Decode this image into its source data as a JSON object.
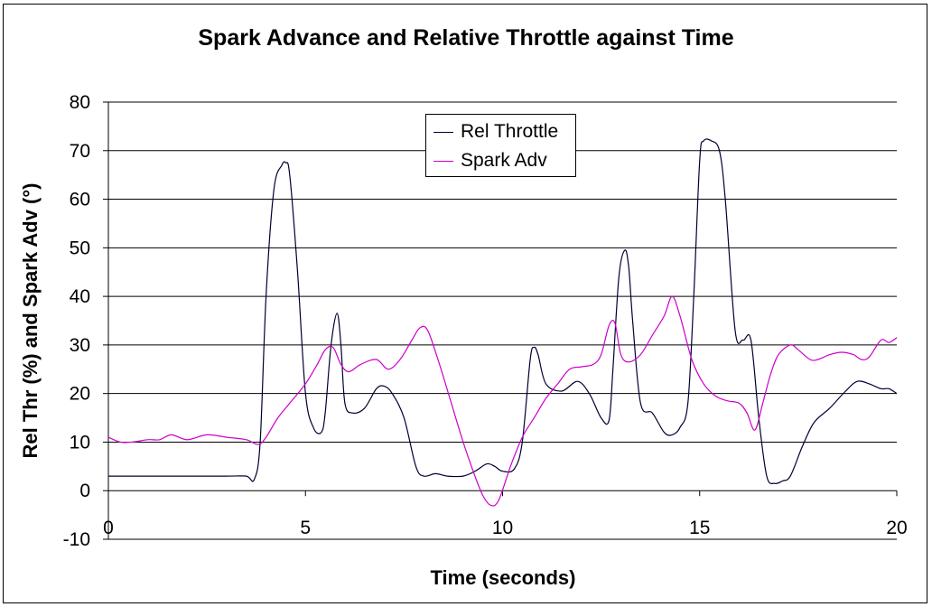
{
  "chart_data": {
    "type": "line",
    "title": "Spark Advance and Relative Throttle against Time",
    "xlabel": "Time (seconds)",
    "ylabel": "Rel Thr (%) and Spark Adv (°)",
    "xlim": [
      0,
      20
    ],
    "ylim": [
      -10,
      80
    ],
    "x_ticks": [
      "0",
      "5",
      "10",
      "15",
      "20"
    ],
    "y_ticks": [
      "-10",
      "0",
      "10",
      "20",
      "30",
      "40",
      "50",
      "60",
      "70",
      "80"
    ],
    "grid": "horizontal",
    "legend_position": "top-center",
    "series": [
      {
        "name": "Rel Throttle",
        "color": "#000033",
        "x": [
          0,
          1,
          2,
          3,
          3.5,
          3.7,
          3.85,
          4.0,
          4.2,
          4.4,
          4.5,
          4.6,
          4.8,
          5.0,
          5.2,
          5.4,
          5.5,
          5.65,
          5.8,
          5.9,
          6.0,
          6.2,
          6.5,
          6.8,
          7.0,
          7.2,
          7.5,
          7.8,
          8.0,
          8.3,
          8.6,
          9.0,
          9.3,
          9.6,
          9.8,
          10.0,
          10.3,
          10.5,
          10.7,
          10.8,
          10.9,
          11.1,
          11.5,
          11.9,
          12.2,
          12.5,
          12.7,
          12.8,
          12.95,
          13.1,
          13.2,
          13.3,
          13.5,
          13.8,
          14.1,
          14.3,
          14.5,
          14.7,
          14.85,
          15.0,
          15.1,
          15.3,
          15.5,
          15.65,
          15.9,
          16.1,
          16.3,
          16.5,
          16.7,
          16.9,
          17.1,
          17.3,
          17.6,
          17.9,
          18.3,
          18.7,
          19.0,
          19.3,
          19.6,
          19.8,
          20.0
        ],
        "values": [
          3,
          3,
          3,
          3,
          3,
          2.3,
          10,
          40,
          62,
          67,
          67.5,
          65,
          45,
          20,
          13,
          12,
          16,
          30,
          36.5,
          30,
          18,
          16,
          17,
          21,
          21.5,
          20,
          15,
          5,
          3,
          3.5,
          3,
          3,
          4,
          5.5,
          5,
          4,
          4.5,
          10,
          27,
          29.5,
          28,
          22,
          20.5,
          22.5,
          20,
          15,
          14.5,
          25,
          44,
          49.5,
          46,
          35,
          18,
          16,
          12,
          11.5,
          13,
          18,
          40,
          68,
          72,
          72,
          70,
          60,
          33,
          31,
          31,
          15,
          3,
          1.5,
          2,
          3,
          9,
          14,
          17,
          20.5,
          22.5,
          22,
          21,
          21,
          20
        ]
      },
      {
        "name": "Spark Adv",
        "color": "#cc00cc",
        "x": [
          0,
          0.3,
          0.6,
          1.0,
          1.3,
          1.6,
          2.0,
          2.5,
          3.0,
          3.5,
          3.8,
          4.0,
          4.3,
          4.6,
          5.0,
          5.3,
          5.5,
          5.7,
          5.9,
          6.1,
          6.4,
          6.8,
          7.1,
          7.4,
          7.7,
          7.9,
          8.1,
          8.4,
          8.7,
          9.0,
          9.3,
          9.5,
          9.7,
          9.9,
          10.2,
          10.5,
          10.8,
          11.1,
          11.4,
          11.7,
          12.0,
          12.3,
          12.5,
          12.7,
          12.85,
          13.0,
          13.2,
          13.5,
          13.8,
          14.1,
          14.3,
          14.5,
          14.8,
          15.1,
          15.4,
          15.7,
          16.0,
          16.2,
          16.4,
          16.6,
          16.8,
          17.0,
          17.3,
          17.5,
          17.8,
          18.0,
          18.3,
          18.6,
          18.9,
          19.1,
          19.3,
          19.6,
          19.8,
          20.0
        ],
        "values": [
          11,
          10,
          10,
          10.5,
          10.5,
          11.5,
          10.5,
          11.5,
          11,
          10.5,
          9.5,
          11,
          15,
          18,
          22,
          26,
          29,
          29.5,
          26,
          24.5,
          26,
          27,
          25,
          27,
          31,
          33.5,
          33,
          26,
          18,
          10,
          3,
          -1,
          -3,
          -2,
          5,
          11,
          15,
          19,
          22,
          25,
          25.5,
          26,
          28,
          34,
          34.5,
          28,
          26.5,
          28,
          32,
          36,
          40,
          36,
          27,
          22,
          19.5,
          18.5,
          18,
          16,
          12.5,
          18,
          24,
          28,
          30,
          29,
          27,
          27,
          28,
          28.5,
          28,
          27,
          27.5,
          31,
          30.5,
          31.5
        ]
      }
    ]
  }
}
